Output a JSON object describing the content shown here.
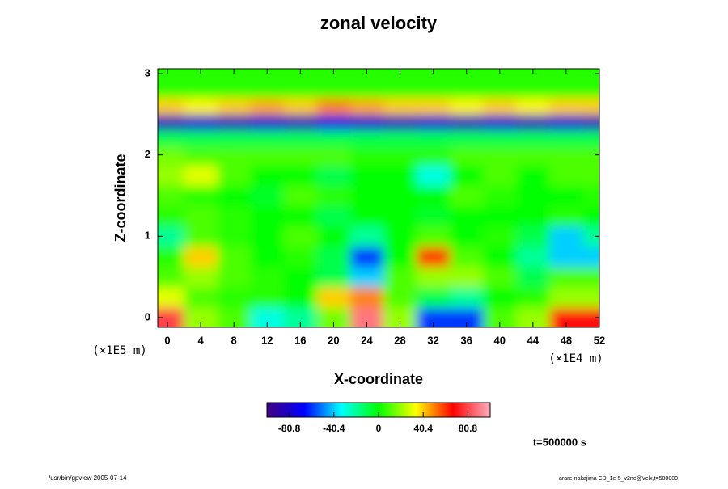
{
  "chart_data": {
    "type": "heatmap",
    "title": "zonal velocity",
    "x_label": "X-coordinate",
    "y_label": "Z-coordinate",
    "x_unit": "(×1E4 m)",
    "y_unit": "(×1E5 m)",
    "x": [
      0,
      4,
      8,
      12,
      16,
      20,
      24,
      28,
      32,
      36,
      40,
      44,
      48,
      52
    ],
    "y": [
      0,
      0.25,
      0.5,
      0.75,
      1,
      1.25,
      1.5,
      1.75,
      2,
      2.2,
      2.4,
      2.6,
      2.8,
      3.0
    ],
    "z": [
      [
        80,
        20,
        10,
        -30,
        -20,
        15,
        90,
        20,
        -60,
        -60,
        10,
        20,
        70,
        70
      ],
      [
        30,
        10,
        5,
        5,
        0,
        40,
        50,
        10,
        -10,
        -20,
        0,
        5,
        20,
        20
      ],
      [
        10,
        20,
        10,
        5,
        0,
        -10,
        -40,
        10,
        20,
        20,
        10,
        -10,
        10,
        10
      ],
      [
        5,
        40,
        10,
        0,
        5,
        -10,
        -60,
        0,
        60,
        10,
        0,
        -20,
        -40,
        -40
      ],
      [
        -20,
        10,
        5,
        0,
        10,
        0,
        -20,
        0,
        10,
        0,
        5,
        -10,
        -40,
        -20
      ],
      [
        5,
        10,
        5,
        0,
        0,
        -10,
        0,
        0,
        -5,
        0,
        0,
        0,
        5,
        0
      ],
      [
        10,
        5,
        0,
        -5,
        10,
        5,
        0,
        0,
        0,
        10,
        5,
        0,
        0,
        5
      ],
      [
        20,
        30,
        10,
        0,
        0,
        -10,
        0,
        0,
        -30,
        0,
        10,
        0,
        10,
        10
      ],
      [
        15,
        10,
        10,
        10,
        10,
        10,
        5,
        5,
        5,
        10,
        10,
        10,
        10,
        10
      ],
      [
        -10,
        -10,
        -10,
        -10,
        -10,
        -10,
        -10,
        -10,
        -10,
        -10,
        -10,
        -10,
        -10,
        -10
      ],
      [
        -85,
        -80,
        -85,
        -80,
        -85,
        -75,
        -80,
        -85,
        -80,
        -85,
        -80,
        -85,
        -80,
        -85
      ],
      [
        40,
        35,
        40,
        45,
        40,
        50,
        45,
        40,
        40,
        35,
        40,
        35,
        40,
        40
      ],
      [
        5,
        5,
        5,
        5,
        5,
        5,
        5,
        5,
        5,
        5,
        5,
        5,
        5,
        5
      ],
      [
        5,
        5,
        5,
        5,
        5,
        5,
        5,
        5,
        5,
        5,
        5,
        5,
        5,
        5
      ]
    ],
    "xlim": [
      -1.17,
      52
    ],
    "ylim": [
      -0.12,
      3.06
    ],
    "xticks": [
      0,
      4,
      8,
      12,
      16,
      20,
      24,
      28,
      32,
      36,
      40,
      44,
      48,
      52
    ],
    "yticks": [
      0,
      1,
      2,
      3
    ],
    "clim": [
      -101,
      101
    ],
    "cticks": [
      -80.8,
      -40.4,
      0,
      40.4,
      80.8
    ],
    "colormap": [
      "#400080",
      "#0000ff",
      "#00ffff",
      "#00ff00",
      "#ffff00",
      "#ff0000",
      "#ffb0c0"
    ],
    "time_label": "t=500000 s",
    "footer_left": "/usr/bin/gpview 2005-07-14",
    "footer_right": "arare-nakajima CD_1e-5_v2nc@Velx,t=500000"
  }
}
